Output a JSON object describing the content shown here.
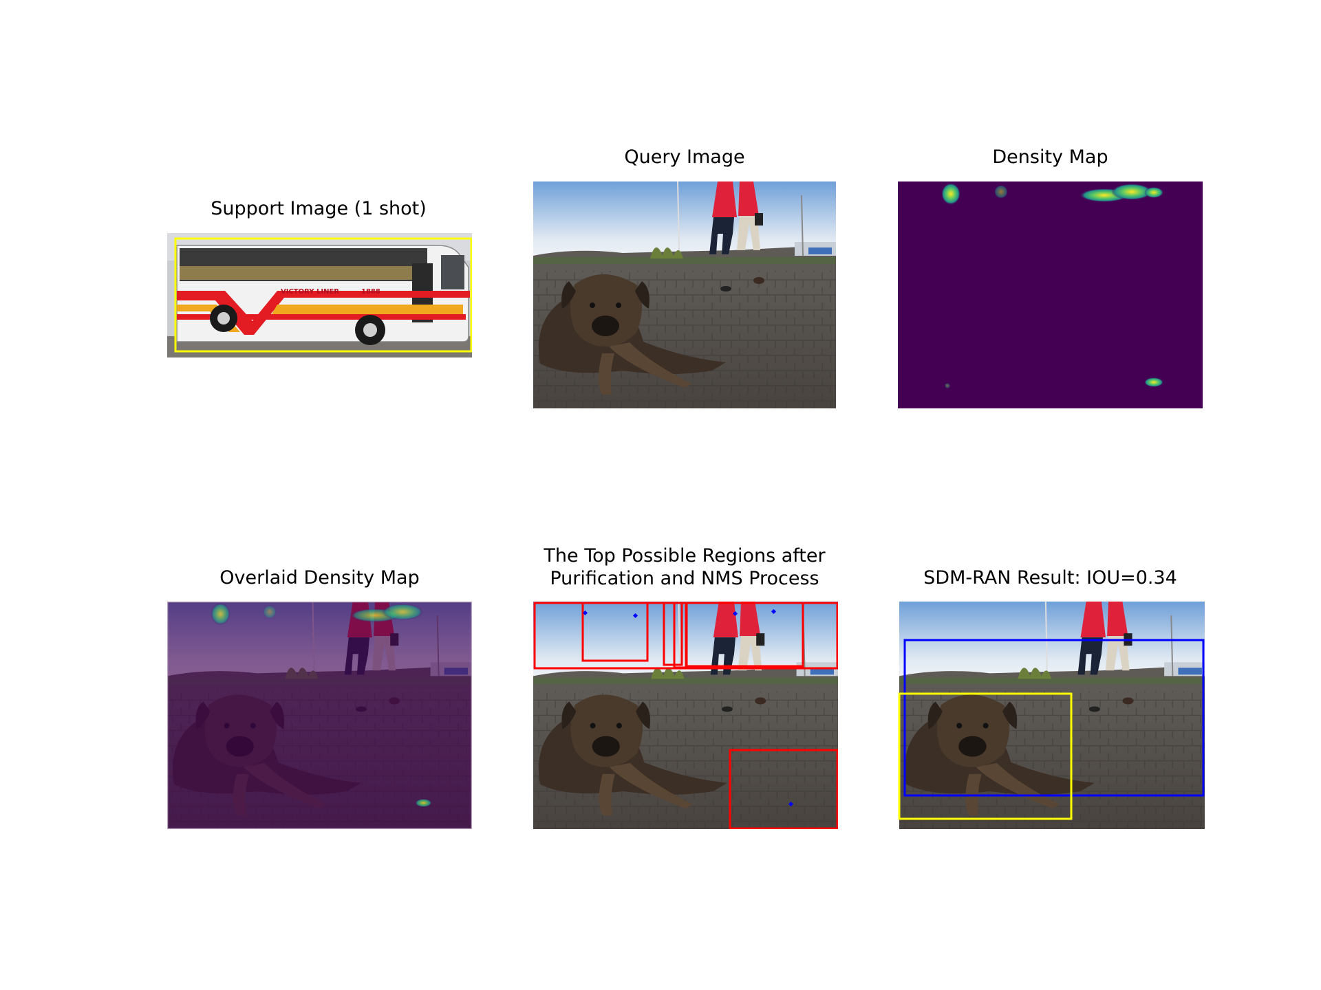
{
  "panels": {
    "support": {
      "title": "Support Image (1 shot)",
      "bus_text": "VICTORY LINER",
      "bus_number": "1888",
      "box_color": "#ffff00"
    },
    "query": {
      "title": "Query Image"
    },
    "density": {
      "title": "Density Map",
      "colors": {
        "background": "#440154",
        "mid": "#21918c",
        "high": "#fde725"
      }
    },
    "overlaid": {
      "title": "Overlaid Density Map"
    },
    "regions": {
      "title_line1": "The Top Possible Regions after",
      "title_line2": "Purification and NMS Process",
      "box_color": "#ff0000",
      "point_color": "#0000ff"
    },
    "result": {
      "title": "SDM-RAN Result: IOU=0.34",
      "pred_color": "#0000ff",
      "gt_color": "#ffff00"
    }
  }
}
